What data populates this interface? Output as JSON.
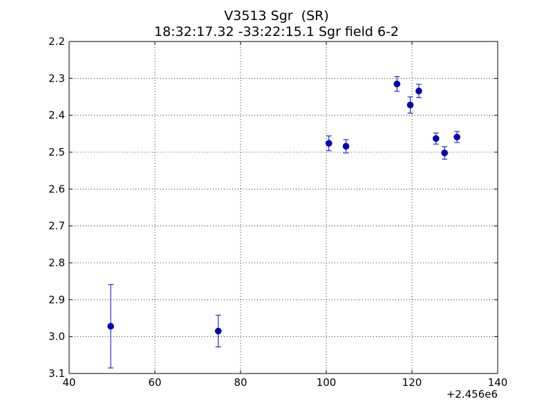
{
  "chart_data": {
    "type": "scatter",
    "title": "V3513 Sgr  (SR)",
    "subtitle": "18:32:17.32 -33:22:15.1 Sgr field 6-2",
    "xlabel": "",
    "ylabel": "",
    "x_offset_label": "+2.456e6",
    "xlim": [
      40,
      140
    ],
    "ylim": [
      2.2,
      3.1
    ],
    "y_inverted": true,
    "x_ticks": [
      "40",
      "60",
      "80",
      "100",
      "120",
      "140"
    ],
    "y_ticks": [
      "2.2",
      "2.3",
      "2.4",
      "2.5",
      "2.6",
      "2.7",
      "2.8",
      "2.9",
      "3.0",
      "3.1"
    ],
    "grid": true,
    "marker_color": "#0000cc",
    "points": [
      {
        "x": 49.7,
        "y": 2.972,
        "err": 0.113
      },
      {
        "x": 74.8,
        "y": 2.985,
        "err": 0.043
      },
      {
        "x": 100.6,
        "y": 2.476,
        "err": 0.02
      },
      {
        "x": 104.6,
        "y": 2.484,
        "err": 0.018
      },
      {
        "x": 116.5,
        "y": 2.315,
        "err": 0.02
      },
      {
        "x": 119.6,
        "y": 2.372,
        "err": 0.022
      },
      {
        "x": 121.6,
        "y": 2.334,
        "err": 0.018
      },
      {
        "x": 125.6,
        "y": 2.463,
        "err": 0.015
      },
      {
        "x": 127.6,
        "y": 2.502,
        "err": 0.017
      },
      {
        "x": 130.5,
        "y": 2.459,
        "err": 0.015
      }
    ]
  }
}
